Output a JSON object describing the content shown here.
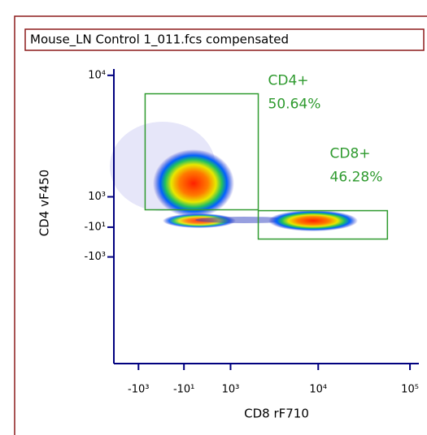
{
  "chart_data": {
    "type": "flow-density",
    "title": "Mouse_LN Control 1_011.fcs compensated",
    "x_label": "CD8 rF710",
    "y_label": "CD4 vF450",
    "xscale": "biexponential",
    "yscale": "biexponential",
    "xlim": [
      -2000,
      125000
    ],
    "ylim": [
      -8000,
      11000
    ],
    "xticks": [
      {
        "value": -1000,
        "label": "-10³"
      },
      {
        "value": -10,
        "label": "-10¹"
      },
      {
        "value": 1000,
        "label": "10³"
      },
      {
        "value": 10000,
        "label": "10⁴"
      },
      {
        "value": 100000,
        "label": "10⁵"
      }
    ],
    "yticks": [
      {
        "value": 10000,
        "label": "10⁴"
      },
      {
        "value": 1000,
        "label": "10³"
      },
      {
        "value": -10,
        "label": "-10¹"
      },
      {
        "value": -1000,
        "label": "-10³"
      }
    ],
    "gates": [
      {
        "name": "CD4+",
        "value": 50.64,
        "value_label": "50.64%",
        "x": [
          -810,
          2170
        ],
        "y": [
          556,
          7570
        ],
        "color": "#2e9a2e"
      },
      {
        "name": "CD8+",
        "value": 46.28,
        "value_label": "46.28%",
        "x": [
          2170,
          56800
        ],
        "y": [
          -395,
          527
        ],
        "color": "#2e9a2e"
      }
    ]
  }
}
